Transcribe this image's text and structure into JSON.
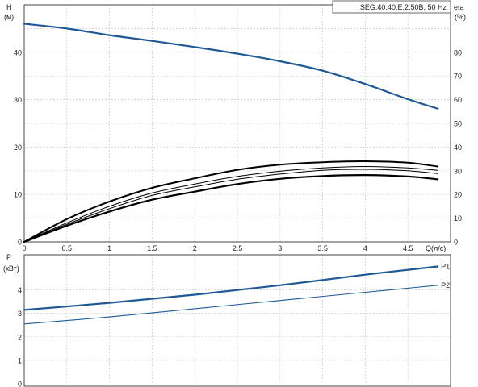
{
  "title": "SEG.40.40.E.2.50B, 50 Hz",
  "colors": {
    "blue": "#1f5a96",
    "black": "#000000",
    "grid": "#c8c8c8"
  },
  "chart_data": [
    {
      "type": "line",
      "panel": "top",
      "title": "SEG.40.40.E.2.50B, 50 Hz",
      "xlabel": "Q(л/с)",
      "ylabel_left": "H\n(м)",
      "ylabel_right": "eta\n(%)",
      "xlim": [
        0,
        5
      ],
      "ylim_left": [
        0,
        50
      ],
      "ylim_right": [
        0,
        100
      ],
      "x_ticks": [
        "0",
        "0.5",
        "1",
        "1.5",
        "2",
        "2.5",
        "3",
        "3.5",
        "4",
        "4.5"
      ],
      "y_left_ticks": [
        "0",
        "10",
        "20",
        "30",
        "40"
      ],
      "y_right_ticks": [
        "0",
        "10",
        "20",
        "30",
        "40",
        "50",
        "60",
        "70",
        "80"
      ],
      "grid": true,
      "series": [
        {
          "axis": "left",
          "color": "#1f5a96",
          "x": [
            0,
            0.5,
            1,
            1.5,
            2,
            2.5,
            3,
            3.5,
            4,
            4.5,
            4.85
          ],
          "y": [
            46,
            45,
            43.6,
            42.4,
            41.1,
            39.7,
            38.1,
            36.1,
            33.3,
            30.1,
            28.1
          ]
        },
        {
          "axis": "right",
          "color": "#000000",
          "x": [
            0,
            0.5,
            1,
            1.5,
            2,
            2.5,
            3,
            3.5,
            4,
            4.5,
            4.85
          ],
          "y": [
            0,
            9.6,
            17,
            22.8,
            26.8,
            30.4,
            32.6,
            33.6,
            34,
            33.4,
            31.8
          ]
        },
        {
          "axis": "right",
          "color": "#000000",
          "x": [
            0,
            0.5,
            1,
            1.5,
            2,
            2.5,
            3,
            3.5,
            4,
            4.5,
            4.85
          ],
          "y": [
            0,
            8,
            15,
            20.6,
            24.4,
            27.6,
            29.8,
            31.2,
            31.8,
            31.2,
            30.2
          ]
        },
        {
          "axis": "right",
          "color": "#000000",
          "x": [
            0,
            0.5,
            1,
            1.5,
            2,
            2.5,
            3,
            3.5,
            4,
            4.5,
            4.85
          ],
          "y": [
            0,
            7.4,
            14,
            19.6,
            23.2,
            26.4,
            28.6,
            30.2,
            30.6,
            30.0,
            28.8
          ]
        },
        {
          "axis": "right",
          "color": "#000000",
          "x": [
            0,
            0.5,
            1,
            1.5,
            2,
            2.5,
            3,
            3.5,
            4,
            4.5,
            4.85
          ],
          "y": [
            0,
            6.8,
            12.8,
            17.8,
            21.2,
            24.4,
            26.6,
            27.8,
            28.2,
            27.6,
            26.4
          ]
        }
      ]
    },
    {
      "type": "line",
      "panel": "bottom",
      "ylabel": "P\n(кВт)",
      "xlim": [
        0,
        5
      ],
      "ylim": [
        0,
        5.5
      ],
      "y_ticks": [
        "0",
        "1",
        "2",
        "3",
        "4"
      ],
      "grid": true,
      "series": [
        {
          "name": "P1",
          "color": "#1f5a96",
          "x": [
            0,
            1,
            2,
            3,
            4,
            4.85
          ],
          "y": [
            3.15,
            3.45,
            3.8,
            4.2,
            4.65,
            5.0
          ]
        },
        {
          "name": "P2",
          "color": "#1f5a96",
          "x": [
            0,
            1,
            2,
            3,
            4,
            4.85
          ],
          "y": [
            2.55,
            2.85,
            3.2,
            3.55,
            3.9,
            4.2
          ]
        }
      ]
    }
  ]
}
